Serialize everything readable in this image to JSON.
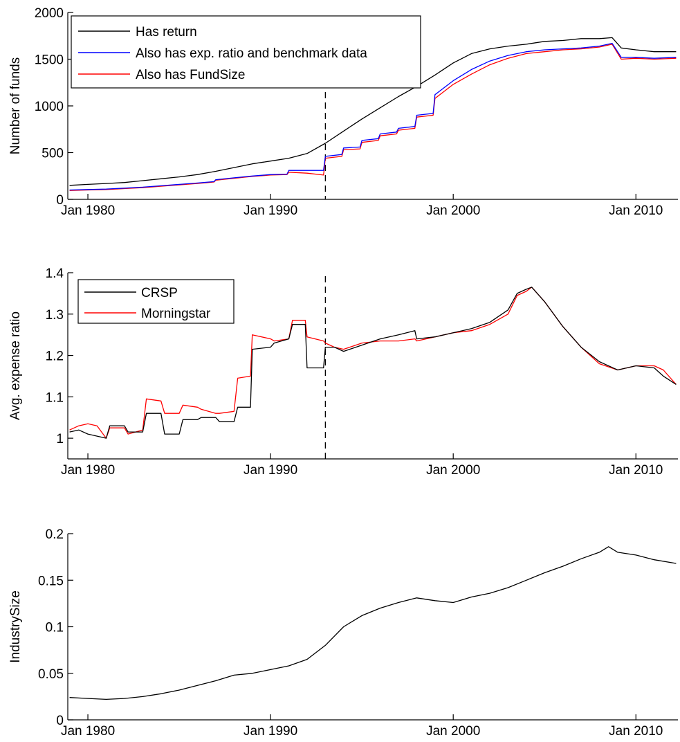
{
  "chart_data": [
    {
      "type": "line",
      "title": "",
      "xlabel": "",
      "ylabel": "Number of funds",
      "xlim": [
        1978.9,
        2012.3
      ],
      "ylim": [
        0,
        2000
      ],
      "x_ticks": [
        {
          "value": 1980,
          "label": "Jan 1980"
        },
        {
          "value": 1990,
          "label": "Jan 1990"
        },
        {
          "value": 2000,
          "label": "Jan 2000"
        },
        {
          "value": 2010,
          "label": "Jan 2010"
        }
      ],
      "y_ticks": [
        {
          "value": 0,
          "label": "0"
        },
        {
          "value": 500,
          "label": "500"
        },
        {
          "value": 1000,
          "label": "1000"
        },
        {
          "value": 1500,
          "label": "1500"
        },
        {
          "value": 2000,
          "label": "2000"
        }
      ],
      "vline": 1993.0,
      "legend": "top-left",
      "series": [
        {
          "name": "Has return",
          "color": "#000000",
          "x": [
            1979.0,
            1980,
            1981,
            1982,
            1983,
            1984,
            1985,
            1986,
            1987,
            1988,
            1989,
            1990,
            1991,
            1992,
            1993,
            1994,
            1995,
            1996,
            1997,
            1998,
            1999,
            2000,
            2001,
            2002,
            2003,
            2004,
            2005,
            2006,
            2007,
            2008,
            2008.7,
            2009.2,
            2010,
            2011,
            2012.2
          ],
          "y": [
            150,
            160,
            170,
            180,
            200,
            220,
            240,
            265,
            300,
            340,
            380,
            410,
            440,
            490,
            600,
            730,
            860,
            980,
            1100,
            1210,
            1330,
            1460,
            1560,
            1610,
            1640,
            1660,
            1690,
            1700,
            1720,
            1720,
            1730,
            1620,
            1600,
            1580,
            1580
          ]
        },
        {
          "name": "Also has exp. ratio and benchmark data",
          "color": "#0000ff",
          "x": [
            1979.0,
            1980,
            1981,
            1982,
            1983,
            1984,
            1985,
            1986,
            1986.9,
            1987,
            1988,
            1989,
            1990,
            1990.9,
            1991,
            1992,
            1992.9,
            1993.0,
            1993.9,
            1994.0,
            1994.9,
            1995.0,
            1995.9,
            1996.0,
            1996.9,
            1997.0,
            1997.9,
            1998.0,
            1998.9,
            1999.0,
            2000,
            2001,
            2002,
            2003,
            2004,
            2005,
            2006,
            2007,
            2008,
            2008.7,
            2009.2,
            2010,
            2011,
            2012.2
          ],
          "y": [
            100,
            105,
            110,
            120,
            130,
            145,
            160,
            175,
            190,
            210,
            230,
            250,
            265,
            270,
            310,
            310,
            310,
            460,
            480,
            550,
            560,
            630,
            650,
            700,
            720,
            760,
            780,
            900,
            920,
            1120,
            1270,
            1390,
            1480,
            1540,
            1580,
            1600,
            1610,
            1620,
            1640,
            1670,
            1520,
            1520,
            1510,
            1520
          ]
        },
        {
          "name": "Also has FundSize",
          "color": "#ff0000",
          "x": [
            1979.0,
            1980,
            1981,
            1982,
            1983,
            1984,
            1985,
            1986,
            1986.9,
            1987,
            1988,
            1989,
            1990,
            1990.9,
            1991,
            1992,
            1992.9,
            1993.0,
            1993.9,
            1994.0,
            1994.9,
            1995.0,
            1995.9,
            1996.0,
            1996.9,
            1997.0,
            1997.9,
            1998.0,
            1998.9,
            1999.0,
            2000,
            2001,
            2002,
            2003,
            2004,
            2005,
            2006,
            2007,
            2008,
            2008.7,
            2009.2,
            2010,
            2011,
            2012.2
          ],
          "y": [
            95,
            100,
            105,
            115,
            125,
            140,
            155,
            170,
            185,
            205,
            225,
            245,
            260,
            265,
            290,
            280,
            260,
            440,
            460,
            530,
            540,
            610,
            630,
            680,
            700,
            740,
            760,
            880,
            900,
            1080,
            1230,
            1340,
            1440,
            1510,
            1560,
            1580,
            1600,
            1610,
            1630,
            1660,
            1500,
            1510,
            1500,
            1510
          ]
        }
      ]
    },
    {
      "type": "line",
      "title": "",
      "xlabel": "",
      "ylabel": "Avg. expense ratio",
      "xlim": [
        1978.9,
        2012.3
      ],
      "ylim": [
        0.95,
        1.4
      ],
      "x_ticks": [
        {
          "value": 1980,
          "label": "Jan 1980"
        },
        {
          "value": 1990,
          "label": "Jan 1990"
        },
        {
          "value": 2000,
          "label": "Jan 2000"
        },
        {
          "value": 2010,
          "label": "Jan 2010"
        }
      ],
      "y_ticks": [
        {
          "value": 1.0,
          "label": "1"
        },
        {
          "value": 1.1,
          "label": "1.1"
        },
        {
          "value": 1.2,
          "label": "1.2"
        },
        {
          "value": 1.3,
          "label": "1.3"
        },
        {
          "value": 1.4,
          "label": "1.4"
        }
      ],
      "vline": 1993.0,
      "legend": "top-left",
      "series": [
        {
          "name": "CRSP",
          "color": "#000000",
          "x": [
            1979.0,
            1979.5,
            1980.0,
            1980.5,
            1981.0,
            1981.2,
            1982.0,
            1982.2,
            1983.0,
            1983.2,
            1984.0,
            1984.2,
            1985.0,
            1985.2,
            1986.0,
            1986.2,
            1987.0,
            1987.2,
            1988.0,
            1988.2,
            1988.9,
            1989.0,
            1990.0,
            1990.2,
            1991.0,
            1991.2,
            1991.9,
            1992.0,
            1992.9,
            1993.0,
            1993.5,
            1994.0,
            1995,
            1996,
            1997,
            1997.9,
            1998,
            1999,
            2000,
            2001,
            2002,
            2003,
            2003.5,
            2004.0,
            2004.3,
            2005,
            2006,
            2007,
            2008,
            2009,
            2010,
            2011,
            2011.5,
            2012.2
          ],
          "y": [
            1.015,
            1.02,
            1.01,
            1.005,
            1.0,
            1.03,
            1.03,
            1.015,
            1.015,
            1.06,
            1.06,
            1.01,
            1.01,
            1.045,
            1.045,
            1.05,
            1.05,
            1.04,
            1.04,
            1.075,
            1.075,
            1.215,
            1.22,
            1.23,
            1.24,
            1.275,
            1.275,
            1.17,
            1.17,
            1.22,
            1.22,
            1.21,
            1.225,
            1.24,
            1.25,
            1.26,
            1.24,
            1.245,
            1.255,
            1.265,
            1.28,
            1.31,
            1.35,
            1.36,
            1.365,
            1.33,
            1.27,
            1.22,
            1.185,
            1.165,
            1.175,
            1.17,
            1.15,
            1.13
          ]
        },
        {
          "name": "Morningstar",
          "color": "#ff0000",
          "x": [
            1979.0,
            1979.5,
            1980.0,
            1980.5,
            1981.0,
            1981.2,
            1982.0,
            1982.2,
            1983.0,
            1983.2,
            1984.0,
            1984.2,
            1985.0,
            1985.2,
            1986.0,
            1986.2,
            1987.0,
            1987.2,
            1988.0,
            1988.2,
            1988.9,
            1989.0,
            1990.0,
            1990.2,
            1991.0,
            1991.2,
            1991.9,
            1992.0,
            1992.9,
            1993.0,
            1993.5,
            1994.0,
            1995,
            1996,
            1997,
            1997.9,
            1998,
            1999,
            2000,
            2001,
            2002,
            2003,
            2003.5,
            2004.0,
            2004.3,
            2005,
            2006,
            2007,
            2008,
            2009,
            2010,
            2011,
            2011.5,
            2012.2
          ],
          "y": [
            1.02,
            1.03,
            1.035,
            1.03,
            1.0,
            1.025,
            1.025,
            1.01,
            1.02,
            1.095,
            1.09,
            1.06,
            1.06,
            1.08,
            1.075,
            1.07,
            1.06,
            1.06,
            1.065,
            1.145,
            1.15,
            1.25,
            1.24,
            1.235,
            1.24,
            1.285,
            1.285,
            1.245,
            1.235,
            1.23,
            1.22,
            1.215,
            1.23,
            1.235,
            1.235,
            1.24,
            1.235,
            1.245,
            1.255,
            1.26,
            1.275,
            1.3,
            1.345,
            1.355,
            1.365,
            1.33,
            1.27,
            1.22,
            1.18,
            1.165,
            1.175,
            1.175,
            1.165,
            1.13
          ]
        }
      ]
    },
    {
      "type": "line",
      "title": "",
      "xlabel": "",
      "ylabel": "IndustrySize",
      "xlim": [
        1978.9,
        2012.3
      ],
      "ylim": [
        0,
        0.2
      ],
      "x_ticks": [
        {
          "value": 1980,
          "label": "Jan 1980"
        },
        {
          "value": 1990,
          "label": "Jan 1990"
        },
        {
          "value": 2000,
          "label": "Jan 2000"
        },
        {
          "value": 2010,
          "label": "Jan 2010"
        }
      ],
      "y_ticks": [
        {
          "value": 0,
          "label": "0"
        },
        {
          "value": 0.05,
          "label": "0.05"
        },
        {
          "value": 0.1,
          "label": "0.1"
        },
        {
          "value": 0.15,
          "label": "0.15"
        },
        {
          "value": 0.2,
          "label": "0.2"
        }
      ],
      "series": [
        {
          "name": "",
          "color": "#000000",
          "x": [
            1979.0,
            1980,
            1981,
            1982,
            1983,
            1984,
            1985,
            1986,
            1987,
            1988,
            1989,
            1990,
            1991,
            1992,
            1993,
            1994,
            1995,
            1996,
            1997,
            1998,
            1999,
            2000,
            2001,
            2002,
            2003,
            2004,
            2005,
            2006,
            2007,
            2008,
            2008.5,
            2009,
            2010,
            2011,
            2012.2
          ],
          "y": [
            0.024,
            0.023,
            0.022,
            0.023,
            0.025,
            0.028,
            0.032,
            0.037,
            0.042,
            0.048,
            0.05,
            0.054,
            0.058,
            0.065,
            0.08,
            0.1,
            0.112,
            0.12,
            0.126,
            0.131,
            0.128,
            0.126,
            0.132,
            0.136,
            0.142,
            0.15,
            0.158,
            0.165,
            0.173,
            0.18,
            0.186,
            0.18,
            0.177,
            0.172,
            0.168
          ]
        }
      ]
    }
  ]
}
